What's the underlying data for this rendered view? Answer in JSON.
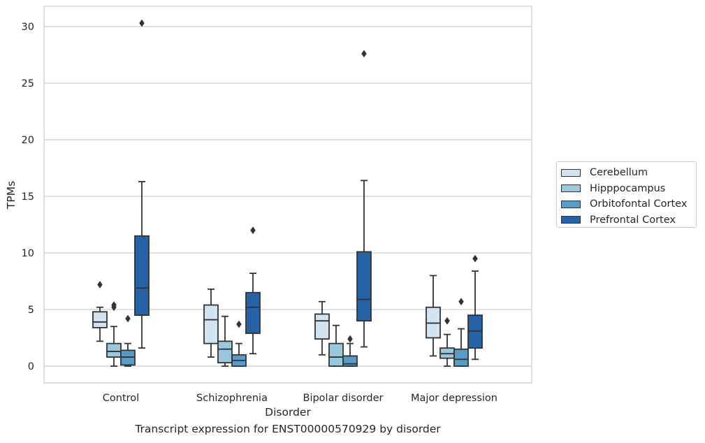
{
  "caption": "Transcript expression for ENST00000570929 by disorder",
  "chart_data": {
    "type": "boxplot",
    "xlabel": "Disorder",
    "ylabel": "TPMs",
    "ylim": [
      -1.4,
      32
    ],
    "yticks": [
      0,
      5,
      10,
      15,
      20,
      25,
      30
    ],
    "grid": true,
    "legend_position": "right",
    "categories": [
      "Control",
      "Schizophrenia",
      "Bipolar disorder",
      "Major depression"
    ],
    "series": [
      {
        "name": "Cerebellum",
        "color": "#d2e3f2",
        "boxes": [
          {
            "whislo": 2.2,
            "q1": 3.4,
            "med": 3.9,
            "q3": 4.8,
            "whishi": 5.2,
            "fliers": [
              7.2
            ]
          },
          {
            "whislo": 0.8,
            "q1": 2.0,
            "med": 4.1,
            "q3": 5.4,
            "whishi": 6.8,
            "fliers": []
          },
          {
            "whislo": 1.0,
            "q1": 2.4,
            "med": 4.0,
            "q3": 4.6,
            "whishi": 5.7,
            "fliers": []
          },
          {
            "whislo": 0.9,
            "q1": 2.5,
            "med": 3.8,
            "q3": 5.2,
            "whishi": 8.0,
            "fliers": []
          }
        ]
      },
      {
        "name": "Hipppocampus",
        "color": "#9ac8df",
        "boxes": [
          {
            "whislo": 0.0,
            "q1": 0.8,
            "med": 1.3,
            "q3": 2.0,
            "whishi": 3.5,
            "fliers": [
              5.2,
              5.4
            ]
          },
          {
            "whislo": 0.0,
            "q1": 0.3,
            "med": 1.5,
            "q3": 2.2,
            "whishi": 4.4,
            "fliers": []
          },
          {
            "whislo": 0.0,
            "q1": 0.0,
            "med": 0.8,
            "q3": 2.0,
            "whishi": 3.6,
            "fliers": []
          },
          {
            "whislo": 0.0,
            "q1": 0.7,
            "med": 1.1,
            "q3": 1.6,
            "whishi": 2.8,
            "fliers": [
              4.0
            ]
          }
        ]
      },
      {
        "name": "Orbitofontal Cortex",
        "color": "#5a9ac9",
        "boxes": [
          {
            "whislo": 0.0,
            "q1": 0.1,
            "med": 0.8,
            "q3": 1.4,
            "whishi": 2.0,
            "fliers": [
              4.2
            ]
          },
          {
            "whislo": 0.0,
            "q1": 0.0,
            "med": 0.5,
            "q3": 1.0,
            "whishi": 2.0,
            "fliers": [
              3.7
            ]
          },
          {
            "whislo": 0.0,
            "q1": 0.0,
            "med": 0.2,
            "q3": 0.9,
            "whishi": 2.0,
            "fliers": [
              2.4
            ]
          },
          {
            "whislo": 0.0,
            "q1": 0.0,
            "med": 0.6,
            "q3": 1.5,
            "whishi": 3.3,
            "fliers": [
              5.7
            ]
          }
        ]
      },
      {
        "name": "Prefrontal Cortex",
        "color": "#2562a6",
        "boxes": [
          {
            "whislo": 1.6,
            "q1": 4.5,
            "med": 6.9,
            "q3": 11.5,
            "whishi": 16.3,
            "fliers": [
              30.3
            ]
          },
          {
            "whislo": 1.1,
            "q1": 2.9,
            "med": 5.2,
            "q3": 6.5,
            "whishi": 8.2,
            "fliers": [
              12.0
            ]
          },
          {
            "whislo": 1.7,
            "q1": 4.0,
            "med": 5.9,
            "q3": 10.1,
            "whishi": 16.4,
            "fliers": [
              27.6
            ]
          },
          {
            "whislo": 0.6,
            "q1": 1.6,
            "med": 3.1,
            "q3": 4.5,
            "whishi": 8.4,
            "fliers": [
              9.5
            ]
          }
        ]
      }
    ]
  }
}
